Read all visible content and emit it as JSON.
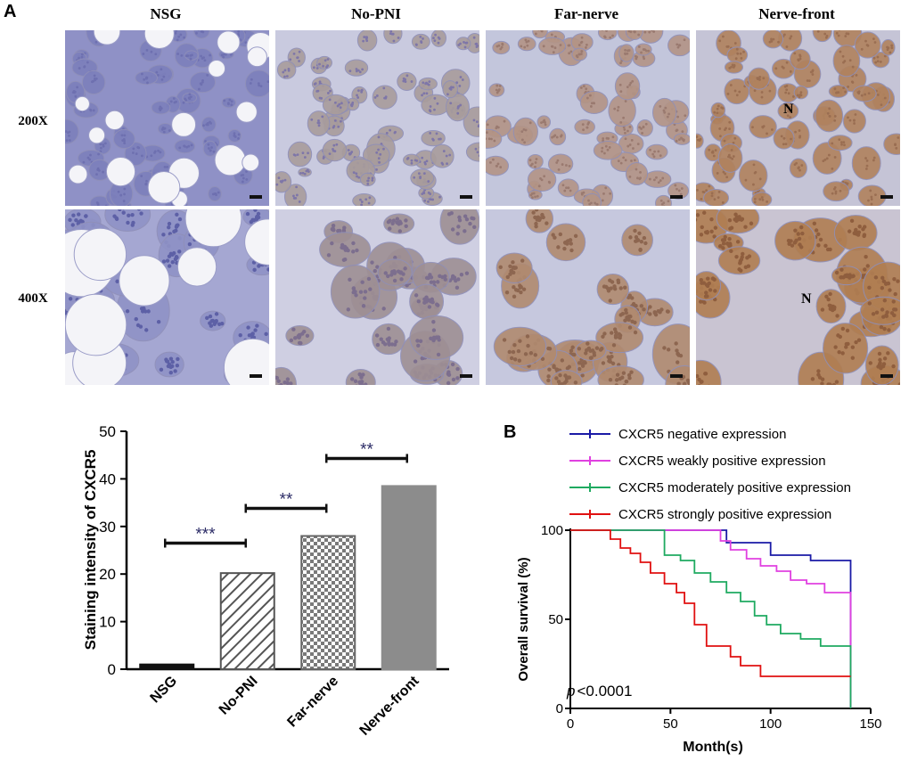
{
  "panel_a": {
    "letter": "A",
    "columns": [
      "NSG",
      "No-PNI",
      "Far-nerve",
      "Nerve-front"
    ],
    "rows": [
      "200X",
      "400X"
    ],
    "nerve_marker": "N"
  },
  "panel_b": {
    "letter": "B"
  },
  "chart_data": [
    {
      "type": "bar",
      "categories": [
        "NSG",
        "No-PNI",
        "Far-nerve",
        "Nerve-front"
      ],
      "values": [
        1,
        20.2,
        28,
        38.5
      ],
      "ylabel": "Staining intensity of CXCR5",
      "xlabel": "",
      "ylim": [
        0,
        50
      ],
      "yticks": [
        0,
        10,
        20,
        30,
        40,
        50
      ],
      "annotations": [
        {
          "text": "***",
          "from": "NSG",
          "to": "No-PNI"
        },
        {
          "text": "**",
          "from": "No-PNI",
          "to": "Far-nerve"
        },
        {
          "text": "**",
          "from": "Far-nerve",
          "to": "Nerve-front"
        }
      ],
      "bar_fills": [
        "solid-black",
        "diagonal-hatch",
        "checkerboard",
        "solid-gray"
      ]
    },
    {
      "type": "line",
      "xlabel": "Month(s)",
      "ylabel": "Overall survival (%)",
      "xlim": [
        0,
        150
      ],
      "ylim": [
        0,
        100
      ],
      "xticks": [
        0,
        50,
        100,
        150
      ],
      "yticks": [
        0,
        50,
        100
      ],
      "annotation": {
        "italic": "p",
        "text": "<0.0001"
      },
      "legend_position": "top",
      "series": [
        {
          "name": "CXCR5 negative expression",
          "color": "#1a1aa6",
          "points": [
            [
              0,
              100
            ],
            [
              78,
              100
            ],
            [
              78,
              93
            ],
            [
              100,
              93
            ],
            [
              100,
              86
            ],
            [
              120,
              86
            ],
            [
              120,
              83
            ],
            [
              140,
              83
            ],
            [
              140,
              0
            ]
          ]
        },
        {
          "name": "CXCR5 weakly positive expression",
          "color": "#e040e0",
          "points": [
            [
              0,
              100
            ],
            [
              75,
              100
            ],
            [
              75,
              94
            ],
            [
              80,
              94
            ],
            [
              80,
              89
            ],
            [
              88,
              89
            ],
            [
              88,
              84
            ],
            [
              95,
              84
            ],
            [
              95,
              80
            ],
            [
              103,
              80
            ],
            [
              103,
              77
            ],
            [
              110,
              77
            ],
            [
              110,
              72
            ],
            [
              118,
              72
            ],
            [
              118,
              70
            ],
            [
              127,
              70
            ],
            [
              127,
              65
            ],
            [
              140,
              65
            ],
            [
              140,
              0
            ]
          ]
        },
        {
          "name": "CXCR5 moderately positive expression",
          "color": "#1faa60",
          "points": [
            [
              0,
              100
            ],
            [
              47,
              100
            ],
            [
              47,
              86
            ],
            [
              55,
              86
            ],
            [
              55,
              83
            ],
            [
              62,
              83
            ],
            [
              62,
              76
            ],
            [
              70,
              76
            ],
            [
              70,
              71
            ],
            [
              78,
              71
            ],
            [
              78,
              65
            ],
            [
              85,
              65
            ],
            [
              85,
              60
            ],
            [
              92,
              60
            ],
            [
              92,
              52
            ],
            [
              98,
              52
            ],
            [
              98,
              47
            ],
            [
              105,
              47
            ],
            [
              105,
              42
            ],
            [
              115,
              42
            ],
            [
              115,
              39
            ],
            [
              125,
              39
            ],
            [
              125,
              35
            ],
            [
              140,
              35
            ],
            [
              140,
              0
            ]
          ]
        },
        {
          "name": "CXCR5 strongly positive expression",
          "color": "#e01010",
          "points": [
            [
              0,
              100
            ],
            [
              20,
              100
            ],
            [
              20,
              95
            ],
            [
              25,
              95
            ],
            [
              25,
              90
            ],
            [
              30,
              90
            ],
            [
              30,
              87
            ],
            [
              35,
              87
            ],
            [
              35,
              82
            ],
            [
              40,
              82
            ],
            [
              40,
              76
            ],
            [
              47,
              76
            ],
            [
              47,
              70
            ],
            [
              53,
              70
            ],
            [
              53,
              65
            ],
            [
              57,
              65
            ],
            [
              57,
              59
            ],
            [
              62,
              59
            ],
            [
              62,
              47
            ],
            [
              68,
              47
            ],
            [
              68,
              35
            ],
            [
              72,
              35
            ],
            [
              72,
              35
            ],
            [
              80,
              35
            ],
            [
              80,
              29
            ],
            [
              85,
              29
            ],
            [
              85,
              24
            ],
            [
              95,
              24
            ],
            [
              95,
              18
            ],
            [
              140,
              18
            ]
          ]
        }
      ]
    }
  ]
}
